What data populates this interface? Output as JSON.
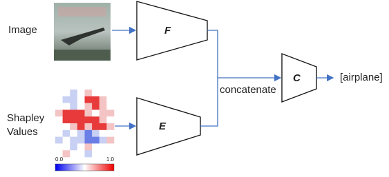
{
  "inputs": [
    {
      "label": [
        "Image"
      ]
    },
    {
      "label": [
        "Shapley",
        "Values"
      ]
    }
  ],
  "modules": [
    {
      "label": "F"
    },
    {
      "label": "E"
    },
    {
      "label": "C"
    }
  ],
  "merge_label": "concatenate",
  "output": "[airplane]",
  "colorbar": {
    "min_label": "0.0",
    "max_label": "1.0"
  }
}
